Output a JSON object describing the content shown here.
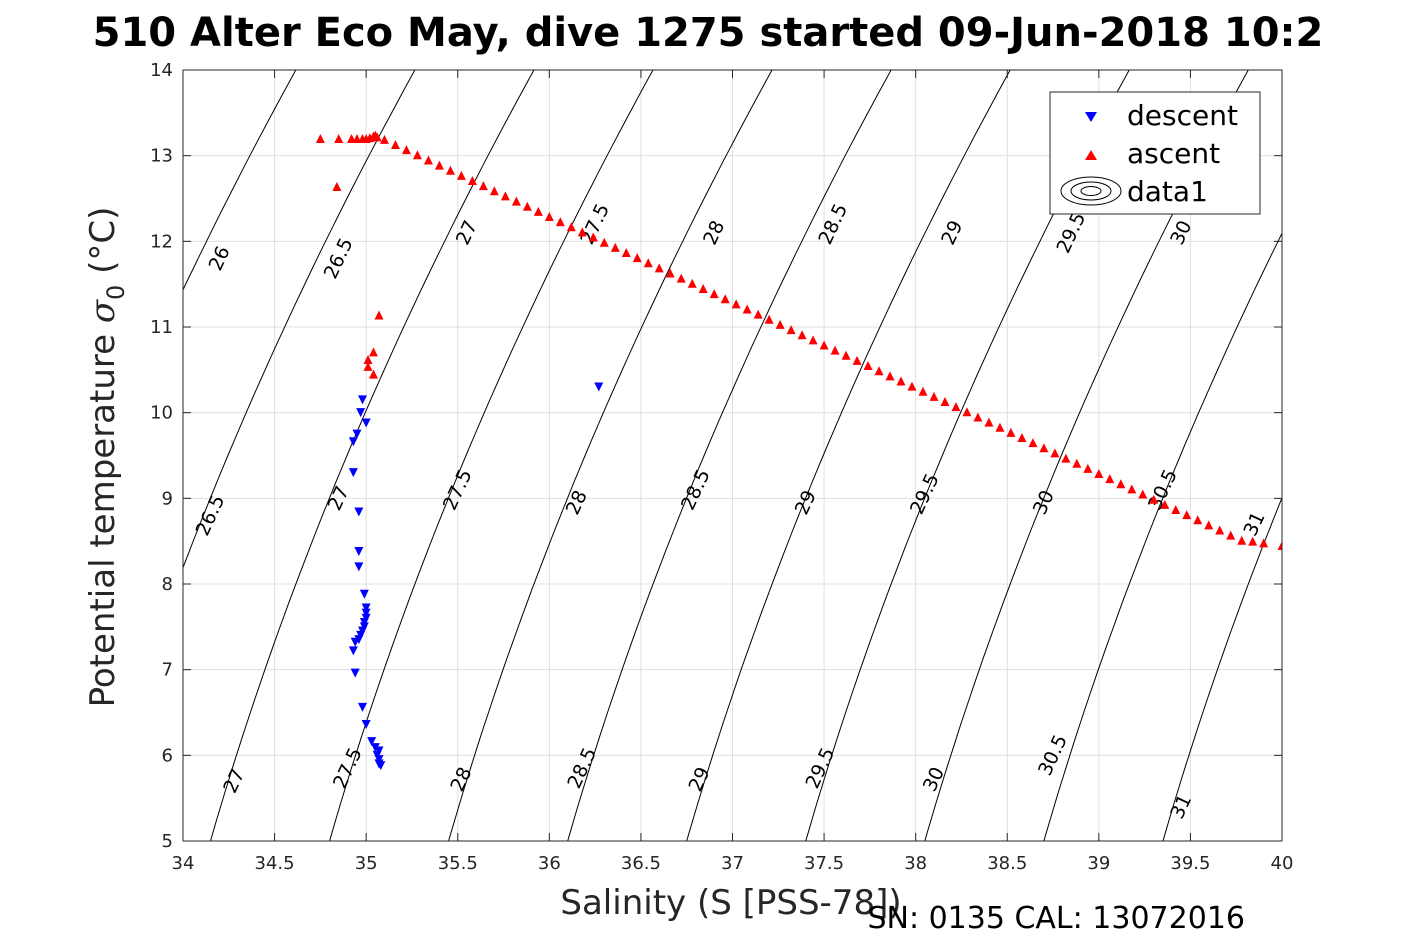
{
  "chart_data": {
    "type": "scatter",
    "title": "510 Alter Eco May, dive 1275 started 09-Jun-2018 10:2",
    "xlabel": "Salinity (S [PSS-78])",
    "ylabel_main": "Potential temperature ",
    "ylabel_sigma": "σ",
    "ylabel_sub": "0",
    "ylabel_unit": " (°C)",
    "xlim": [
      34,
      40
    ],
    "ylim": [
      5,
      14
    ],
    "xticks": [
      34,
      34.5,
      35,
      35.5,
      36,
      36.5,
      37,
      37.5,
      38,
      38.5,
      39,
      39.5,
      40
    ],
    "xtick_labels": [
      "34",
      "34.5",
      "35",
      "35.5",
      "36",
      "36.5",
      "37",
      "37.5",
      "38",
      "38.5",
      "39",
      "39.5",
      "40"
    ],
    "yticks": [
      5,
      6,
      7,
      8,
      9,
      10,
      11,
      12,
      13,
      14
    ],
    "ytick_labels": [
      "5",
      "6",
      "7",
      "8",
      "9",
      "10",
      "11",
      "12",
      "13",
      "14"
    ],
    "grid": true,
    "legend_position": "top-right",
    "legend": [
      {
        "name": "descent",
        "marker": "triangle-down",
        "color": "#0000ff"
      },
      {
        "name": "ascent",
        "marker": "triangle-up",
        "color": "#ff0000"
      },
      {
        "name": "data1",
        "marker": "contour",
        "color": "#000000"
      }
    ],
    "contours": {
      "levels": [
        26,
        26.5,
        27,
        27.5,
        28,
        28.5,
        29,
        29.5,
        30,
        30.5,
        31
      ],
      "labels": [
        {
          "level": 26,
          "text": "26",
          "s": 34.2,
          "t": 11.8
        },
        {
          "level": 26.5,
          "text": "26.5",
          "s": 34.85,
          "t": 11.8
        },
        {
          "level": 27,
          "text": "27",
          "s": 35.55,
          "t": 12.1
        },
        {
          "level": 27.5,
          "text": "27.5",
          "s": 36.25,
          "t": 12.2
        },
        {
          "level": 28,
          "text": "28",
          "s": 36.9,
          "t": 12.1
        },
        {
          "level": 28.5,
          "text": "28.5",
          "s": 37.55,
          "t": 12.2
        },
        {
          "level": 29,
          "text": "29",
          "s": 38.2,
          "t": 12.1
        },
        {
          "level": 29.5,
          "text": "29.5",
          "s": 38.85,
          "t": 12.1
        },
        {
          "level": 30,
          "text": "30",
          "s": 39.45,
          "t": 12.1
        },
        {
          "level": 26.5,
          "text": "26.5",
          "s": 34.15,
          "t": 8.8
        },
        {
          "level": 27,
          "text": "27",
          "s": 34.85,
          "t": 9.0
        },
        {
          "level": 27.5,
          "text": "27.5",
          "s": 35.5,
          "t": 9.1
        },
        {
          "level": 28,
          "text": "28",
          "s": 36.15,
          "t": 8.95
        },
        {
          "level": 28.5,
          "text": "28.5",
          "s": 36.8,
          "t": 9.1
        },
        {
          "level": 29,
          "text": "29",
          "s": 37.4,
          "t": 8.95
        },
        {
          "level": 29.5,
          "text": "29.5",
          "s": 38.05,
          "t": 9.05
        },
        {
          "level": 30,
          "text": "30",
          "s": 38.7,
          "t": 8.95
        },
        {
          "level": 30.5,
          "text": "30.5",
          "s": 39.35,
          "t": 9.1
        },
        {
          "level": 31,
          "text": "31",
          "s": 39.85,
          "t": 8.7
        },
        {
          "level": 27,
          "text": "27",
          "s": 34.28,
          "t": 5.7
        },
        {
          "level": 27.5,
          "text": "27.5",
          "s": 34.9,
          "t": 5.85
        },
        {
          "level": 28,
          "text": "28",
          "s": 35.52,
          "t": 5.72
        },
        {
          "level": 28.5,
          "text": "28.5",
          "s": 36.18,
          "t": 5.85
        },
        {
          "level": 29,
          "text": "29",
          "s": 36.82,
          "t": 5.72
        },
        {
          "level": 29.5,
          "text": "29.5",
          "s": 37.48,
          "t": 5.85
        },
        {
          "level": 30,
          "text": "30",
          "s": 38.1,
          "t": 5.72
        },
        {
          "level": 30.5,
          "text": "30.5",
          "s": 38.75,
          "t": 6.0
        },
        {
          "level": 31,
          "text": "31",
          "s": 39.45,
          "t": 5.4
        }
      ]
    },
    "series": [
      {
        "name": "descent",
        "color": "#0000ff",
        "marker": "triangle-down",
        "points": [
          [
            36.27,
            10.3
          ],
          [
            34.98,
            10.15
          ],
          [
            34.97,
            10.0
          ],
          [
            35.0,
            9.88
          ],
          [
            34.95,
            9.75
          ],
          [
            34.93,
            9.66
          ],
          [
            34.93,
            9.3
          ],
          [
            34.96,
            8.84
          ],
          [
            34.96,
            8.38
          ],
          [
            34.96,
            8.2
          ],
          [
            34.99,
            7.88
          ],
          [
            35.0,
            7.72
          ],
          [
            35.0,
            7.66
          ],
          [
            35.0,
            7.6
          ],
          [
            34.99,
            7.55
          ],
          [
            34.99,
            7.5
          ],
          [
            34.98,
            7.45
          ],
          [
            34.97,
            7.4
          ],
          [
            34.96,
            7.35
          ],
          [
            34.94,
            7.32
          ],
          [
            34.93,
            7.22
          ],
          [
            34.94,
            6.96
          ],
          [
            34.98,
            6.56
          ],
          [
            35.0,
            6.36
          ],
          [
            35.03,
            6.16
          ],
          [
            35.05,
            6.09
          ],
          [
            35.07,
            6.05
          ],
          [
            35.06,
            6.0
          ],
          [
            35.07,
            5.95
          ],
          [
            35.07,
            5.9
          ],
          [
            35.08,
            5.88
          ]
        ]
      },
      {
        "name": "ascent",
        "color": "#ff0000",
        "marker": "triangle-up",
        "points": [
          [
            34.75,
            13.2
          ],
          [
            34.85,
            13.2
          ],
          [
            34.92,
            13.2
          ],
          [
            34.95,
            13.2
          ],
          [
            34.98,
            13.2
          ],
          [
            35.0,
            13.2
          ],
          [
            35.02,
            13.21
          ],
          [
            35.04,
            13.23
          ],
          [
            35.05,
            13.24
          ],
          [
            35.06,
            13.22
          ],
          [
            34.84,
            12.64
          ],
          [
            35.07,
            11.14
          ],
          [
            35.01,
            10.62
          ],
          [
            35.01,
            10.54
          ],
          [
            35.04,
            10.71
          ],
          [
            35.04,
            10.45
          ],
          [
            35.1,
            13.19
          ],
          [
            35.16,
            13.13
          ],
          [
            35.22,
            13.07
          ],
          [
            35.28,
            13.01
          ],
          [
            35.34,
            12.95
          ],
          [
            35.4,
            12.89
          ],
          [
            35.46,
            12.83
          ],
          [
            35.52,
            12.77
          ],
          [
            35.58,
            12.71
          ],
          [
            35.64,
            12.65
          ],
          [
            35.7,
            12.59
          ],
          [
            35.76,
            12.53
          ],
          [
            35.82,
            12.47
          ],
          [
            35.88,
            12.41
          ],
          [
            35.94,
            12.35
          ],
          [
            36.0,
            12.29
          ],
          [
            36.06,
            12.23
          ],
          [
            36.12,
            12.17
          ],
          [
            36.18,
            12.11
          ],
          [
            36.24,
            12.05
          ],
          [
            36.3,
            11.99
          ],
          [
            36.36,
            11.93
          ],
          [
            36.42,
            11.87
          ],
          [
            36.48,
            11.81
          ],
          [
            36.54,
            11.75
          ],
          [
            36.6,
            11.69
          ],
          [
            36.66,
            11.63
          ],
          [
            36.72,
            11.57
          ],
          [
            36.78,
            11.51
          ],
          [
            36.84,
            11.45
          ],
          [
            36.9,
            11.39
          ],
          [
            36.96,
            11.33
          ],
          [
            37.02,
            11.27
          ],
          [
            37.08,
            11.21
          ],
          [
            37.14,
            11.15
          ],
          [
            37.2,
            11.09
          ],
          [
            37.26,
            11.03
          ],
          [
            37.32,
            10.97
          ],
          [
            37.38,
            10.91
          ],
          [
            37.44,
            10.85
          ],
          [
            37.5,
            10.79
          ],
          [
            37.56,
            10.73
          ],
          [
            37.62,
            10.67
          ],
          [
            37.68,
            10.61
          ],
          [
            37.74,
            10.55
          ],
          [
            37.8,
            10.49
          ],
          [
            37.86,
            10.43
          ],
          [
            37.92,
            10.37
          ],
          [
            37.98,
            10.31
          ],
          [
            38.04,
            10.25
          ],
          [
            38.1,
            10.19
          ],
          [
            38.16,
            10.13
          ],
          [
            38.22,
            10.07
          ],
          [
            38.28,
            10.01
          ],
          [
            38.34,
            9.95
          ],
          [
            38.4,
            9.89
          ],
          [
            38.46,
            9.83
          ],
          [
            38.52,
            9.77
          ],
          [
            38.58,
            9.71
          ],
          [
            38.64,
            9.65
          ],
          [
            38.7,
            9.59
          ],
          [
            38.76,
            9.53
          ],
          [
            38.82,
            9.47
          ],
          [
            38.88,
            9.41
          ],
          [
            38.94,
            9.35
          ],
          [
            39.0,
            9.29
          ],
          [
            39.06,
            9.23
          ],
          [
            39.12,
            9.17
          ],
          [
            39.18,
            9.11
          ],
          [
            39.24,
            9.05
          ],
          [
            39.3,
            8.99
          ],
          [
            39.36,
            8.93
          ],
          [
            39.42,
            8.87
          ],
          [
            39.48,
            8.81
          ],
          [
            39.54,
            8.75
          ],
          [
            39.6,
            8.69
          ],
          [
            39.66,
            8.63
          ],
          [
            39.72,
            8.57
          ],
          [
            39.78,
            8.51
          ],
          [
            39.84,
            8.5
          ],
          [
            39.9,
            8.48
          ],
          [
            40.0,
            8.45
          ]
        ]
      }
    ]
  },
  "footer": {
    "serial_text": "SN: 0135  CAL: 13072016"
  }
}
